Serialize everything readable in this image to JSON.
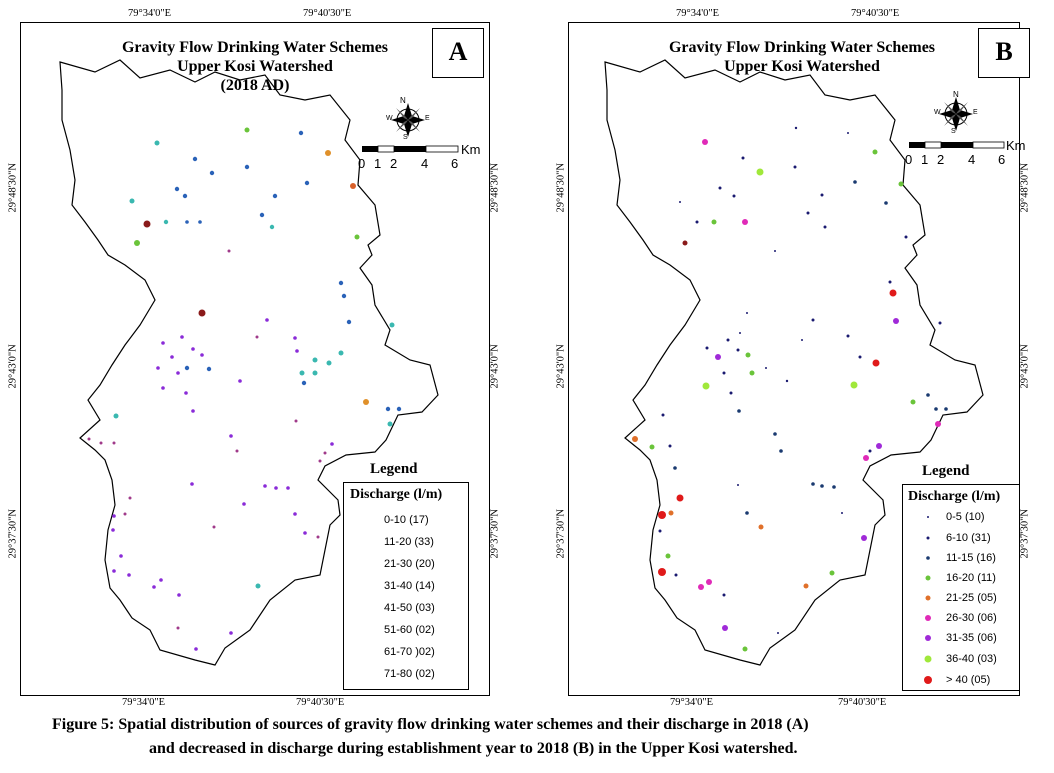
{
  "panels": [
    {
      "id": "A",
      "letter": "A",
      "title_line1": "Gravity Flow Drinking Water Schemes",
      "title_line2": "Upper Kosi Watershed",
      "title_line3": "(2018 AD)",
      "top_coords": [
        "79°34'0\"E",
        "79°40'30\"E"
      ],
      "bottom_coords": [
        "79°34'0\"E",
        "79°40'30\"E"
      ],
      "left_coords": [
        "29°48'30\"N",
        "29°43'0\"N",
        "29°37'30\"N"
      ],
      "right_coords": [
        "29°48'30\"N",
        "29°43'0\"N",
        "29°37'30\"N"
      ],
      "legend_title": "Legend",
      "legend_subtitle": "Discharge (l/m)",
      "legend_items": [
        {
          "label": "0-10 (17)",
          "color": "#a03a8a"
        },
        {
          "label": "11-20 (33)",
          "color": "#8a2bd8"
        },
        {
          "label": "21-30 (20)",
          "color": "#2a62b8"
        },
        {
          "label": "31-40 (14)",
          "color": "#3ab8b0"
        },
        {
          "label": "41-50 (03)",
          "color": "#6ac43a"
        },
        {
          "label": "51-60 (02)",
          "color": "#e0902a"
        },
        {
          "label": "61-70 )02)",
          "color": "#d8602a"
        },
        {
          "label": "71-80 (02)",
          "color": "#8a1a1a"
        }
      ],
      "scale_labels": [
        "0",
        "1",
        "2",
        "4",
        "6"
      ],
      "scale_unit": "Km",
      "compass": [
        "N",
        "S",
        "E",
        "W"
      ]
    },
    {
      "id": "B",
      "letter": "B",
      "title_line1": "Gravity Flow Drinking Water Schemes",
      "title_line2": "Upper Kosi Watershed",
      "top_coords": [
        "79°34'0\"E",
        "79°40'30\"E"
      ],
      "bottom_coords": [
        "79°34'0\"E",
        "79°40'30\"E"
      ],
      "left_coords": [
        "29°48'30\"N",
        "29°43'0\"N",
        "29°37'30\"N"
      ],
      "right_coords": [
        "29°48'30\"N",
        "29°43'0\"N",
        "29°37'30\"N"
      ],
      "legend_title": "Legend",
      "legend_subtitle": "Discharge (l/m)",
      "legend_items": [
        {
          "label": "0-5 (10)",
          "color": "#1a1a70"
        },
        {
          "label": "6-10 (31)",
          "color": "#1a1a70"
        },
        {
          "label": "11-15 (16)",
          "color": "#1a3a70"
        },
        {
          "label": "16-20 (11)",
          "color": "#6ac43a"
        },
        {
          "label": "21-25 (05)",
          "color": "#e0702a"
        },
        {
          "label": "26-30 (06)",
          "color": "#e02ab8"
        },
        {
          "label": "31-35 (06)",
          "color": "#a02ad8"
        },
        {
          "label": "36-40 (03)",
          "color": "#a0e83a"
        },
        {
          "label": "> 40 (05)",
          "color": "#e01a1a"
        }
      ],
      "scale_labels": [
        "0",
        "1",
        "2",
        "4",
        "6"
      ],
      "scale_unit": "Km",
      "compass": [
        "N",
        "S",
        "E",
        "W"
      ]
    }
  ],
  "caption_line1": "Figure 5: Spatial distribution of sources of gravity flow drinking water schemes and their discharge in 2018 (A)",
  "caption_line2": "and decreased in discharge during establishment year to 2018 (B) in the Upper Kosi watershed."
}
